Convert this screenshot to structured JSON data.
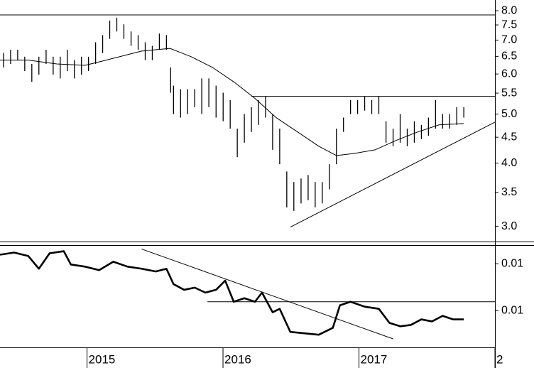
{
  "chart_data": [
    {
      "type": "range_bar",
      "color": "#000000",
      "log_scale": true,
      "xlim": [
        2014.36,
        2018.0
      ],
      "ylim": [
        2.8,
        8.4
      ],
      "yticks": [
        {
          "value": 3,
          "label": "3.0"
        },
        3.5,
        {
          "value": 4,
          "label": "4.0"
        },
        4.5,
        {
          "value": 5,
          "label": "5.0"
        },
        5.5,
        {
          "value": 6,
          "label": "6.0"
        },
        6.5,
        {
          "value": 7,
          "label": "7.0"
        },
        7.5,
        {
          "value": 8,
          "label": "8.0"
        }
      ],
      "x": [
        2014.386,
        2014.438,
        2014.49,
        2014.542,
        2014.594,
        2014.646,
        2014.699,
        2014.751,
        2014.803,
        2014.855,
        2014.907,
        2014.959,
        2015.011,
        2015.063,
        2015.115,
        2015.167,
        2015.219,
        2015.271,
        2015.324,
        2015.376,
        2015.428,
        2015.48,
        2015.532,
        2015.584,
        2015.615,
        2015.636,
        2015.688,
        2015.74,
        2015.792,
        2015.844,
        2015.896,
        2015.949,
        2016.001,
        2016.053,
        2016.105,
        2016.157,
        2016.209,
        2016.261,
        2016.313,
        2016.365,
        2016.417,
        2016.469,
        2016.521,
        2016.574,
        2016.626,
        2016.678,
        2016.73,
        2016.782,
        2016.834,
        2016.886,
        2016.938,
        2016.99,
        2017.042,
        2017.094,
        2017.146,
        2017.199,
        2017.251,
        2017.303,
        2017.355,
        2017.407,
        2017.459,
        2017.511,
        2017.563,
        2017.615,
        2017.667,
        2017.719,
        2017.771
      ],
      "high": [
        6.6,
        6.7,
        6.7,
        6.49,
        6.28,
        6.49,
        6.7,
        6.49,
        6.49,
        6.7,
        6.39,
        6.49,
        6.49,
        6.93,
        7.16,
        7.65,
        7.75,
        7.52,
        7.28,
        7.16,
        6.93,
        6.82,
        7.21,
        7.16,
        6.18,
        5.69,
        5.6,
        5.6,
        5.6,
        5.88,
        5.88,
        5.69,
        5.51,
        5.33,
        4.68,
        5.0,
        5.16,
        5.33,
        5.42,
        5.0,
        4.68,
        3.85,
        3.67,
        3.73,
        3.79,
        3.67,
        3.67,
        3.98,
        4.68,
        4.92,
        5.33,
        5.33,
        5.42,
        5.33,
        5.42,
        4.84,
        4.68,
        5.0,
        4.68,
        4.84,
        4.76,
        4.92,
        5.33,
        5.0,
        5.0,
        5.16,
        5.16
      ],
      "low": [
        6.18,
        6.28,
        6.39,
        6.08,
        5.79,
        5.98,
        6.28,
        5.98,
        5.88,
        6.08,
        5.88,
        5.98,
        6.08,
        6.28,
        6.6,
        7.04,
        7.28,
        7.04,
        6.82,
        6.7,
        6.39,
        6.39,
        6.7,
        6.7,
        5.51,
        5.0,
        4.92,
        5.0,
        5.16,
        5.0,
        5.16,
        4.92,
        4.84,
        4.68,
        4.11,
        4.39,
        4.61,
        4.76,
        4.92,
        4.25,
        3.98,
        3.27,
        3.22,
        3.33,
        3.38,
        3.27,
        3.33,
        3.55,
        3.98,
        4.61,
        5.0,
        5.0,
        5.08,
        5.0,
        5.0,
        4.39,
        4.32,
        4.39,
        4.32,
        4.39,
        4.46,
        4.53,
        4.68,
        4.68,
        4.68,
        4.76,
        4.92
      ],
      "moving_average": {
        "x": [
          2014.36,
          2014.568,
          2014.777,
          2014.985,
          2015.141,
          2015.402,
          2015.61,
          2015.766,
          2015.923,
          2016.079,
          2016.235,
          2016.391,
          2016.548,
          2016.704,
          2016.834,
          2016.964,
          2017.12,
          2017.277,
          2017.433,
          2017.589,
          2017.771
        ],
        "values": [
          6.39,
          6.39,
          6.28,
          6.24,
          6.39,
          6.66,
          6.74,
          6.49,
          6.18,
          5.79,
          5.37,
          4.92,
          4.61,
          4.32,
          4.14,
          4.18,
          4.25,
          4.44,
          4.61,
          4.76,
          4.79
        ]
      },
      "lines": [
        {
          "x": [
            2014.36,
            2018.0
          ],
          "y": [
            7.85,
            7.85
          ]
        },
        {
          "x": [
            2016.209,
            2018.0
          ],
          "y": [
            5.42,
            5.42
          ]
        },
        {
          "x": [
            2016.495,
            2018.0
          ],
          "y": [
            2.99,
            4.82
          ]
        }
      ]
    },
    {
      "type": "line",
      "color": "#000000",
      "log_scale": true,
      "xlim": [
        2014.36,
        2018.0
      ],
      "ylim": [
        0.0058,
        0.0141
      ],
      "yticks": [
        {
          "value": 0.008,
          "label": "0.01"
        },
        {
          "value": 0.012,
          "label": "0.01"
        }
      ],
      "xticks": [
        2015,
        2016,
        2017,
        {
          "value": 2018,
          "label": "2"
        }
      ],
      "x": [
        2014.36,
        2014.464,
        2014.568,
        2014.646,
        2014.725,
        2014.829,
        2014.881,
        2014.985,
        2015.089,
        2015.193,
        2015.298,
        2015.402,
        2015.506,
        2015.584,
        2015.636,
        2015.714,
        2015.792,
        2015.87,
        2015.949,
        2016.016,
        2016.079,
        2016.157,
        2016.235,
        2016.287,
        2016.365,
        2016.417,
        2016.495,
        2016.6,
        2016.704,
        2016.808,
        2016.86,
        2016.938,
        2017.042,
        2017.146,
        2017.224,
        2017.303,
        2017.381,
        2017.459,
        2017.537,
        2017.615,
        2017.693,
        2017.771
      ],
      "values": [
        0.01298,
        0.01322,
        0.01283,
        0.0115,
        0.01314,
        0.01338,
        0.01193,
        0.01171,
        0.01136,
        0.01222,
        0.01171,
        0.0115,
        0.01123,
        0.0115,
        0.01007,
        0.00959,
        0.00977,
        0.00936,
        0.00959,
        0.01038,
        0.00865,
        0.00892,
        0.00865,
        0.00936,
        0.0079,
        0.00814,
        0.00667,
        0.00659,
        0.00651,
        0.00691,
        0.00839,
        0.00865,
        0.00829,
        0.00814,
        0.00721,
        0.007,
        0.00708,
        0.00743,
        0.0073,
        0.00766,
        0.00743,
        0.00743
      ],
      "lines": [
        {
          "x": [
            2015.402,
            2017.251
          ],
          "y": [
            0.01363,
            0.00628
          ]
        },
        {
          "x": [
            2015.886,
            2018.0
          ],
          "y": [
            0.00865,
            0.00865
          ]
        }
      ]
    }
  ]
}
